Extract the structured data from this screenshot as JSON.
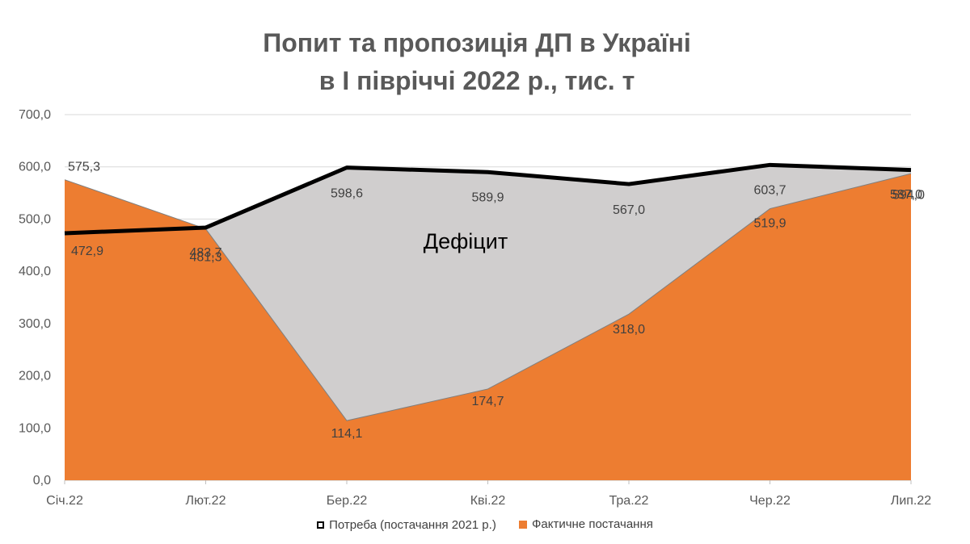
{
  "title_line1": "Попит та пропозиція ДП в Україні",
  "title_line2": "в І півріччі 2022 р., тис. т",
  "annotation": "Дефіцит",
  "colors": {
    "supply": "#ED7D31",
    "gap": "#D0CECE",
    "demand": "#000000"
  },
  "chart_data": {
    "type": "area",
    "categories": [
      "Січ.22",
      "Лют.22",
      "Бер.22",
      "Кві.22",
      "Тра.22",
      "Чер.22",
      "Лип.22"
    ],
    "series": [
      {
        "name": "Потреба (постачання 2021 р.)",
        "kind": "line",
        "values": [
          472.9,
          483.7,
          598.6,
          589.9,
          567.0,
          603.7,
          594.0
        ],
        "labels": [
          "472,9",
          "483,7",
          "598,6",
          "589,9",
          "567,0",
          "603,7",
          "594,0"
        ]
      },
      {
        "name": "Фактичне постачання",
        "kind": "area",
        "values": [
          575.3,
          481.3,
          114.1,
          174.7,
          318.0,
          519.9,
          587.0
        ],
        "labels": [
          "575,3",
          "481,3",
          "114,1",
          "174,7",
          "318,0",
          "519,9",
          "587,0"
        ]
      }
    ],
    "ylim": [
      0,
      700
    ],
    "yticks": [
      "0,0",
      "100,0",
      "200,0",
      "300,0",
      "400,0",
      "500,0",
      "600,0",
      "700,0"
    ],
    "grid": true,
    "legend": "bottom"
  }
}
